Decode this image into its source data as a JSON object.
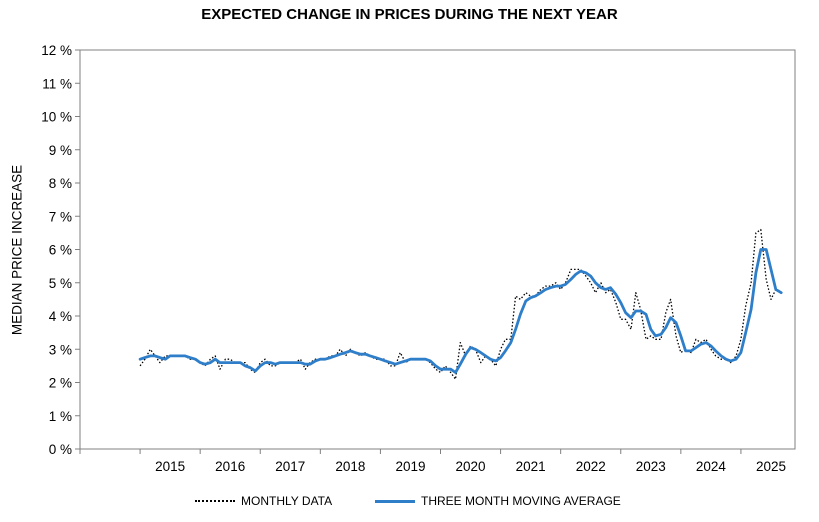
{
  "chart_data": {
    "type": "line",
    "title": "EXPECTED CHANGE IN PRICES DURING THE NEXT YEAR",
    "ylabel": "MEDIAN PRICE INCREASE",
    "xlabel": "",
    "ylim": [
      0,
      12
    ],
    "xlim": [
      2014.0,
      2025.9
    ],
    "y_ticks": [
      0,
      1,
      2,
      3,
      4,
      5,
      6,
      7,
      8,
      9,
      10,
      11,
      12
    ],
    "y_tick_labels": [
      "0 %",
      "1 %",
      "2 %",
      "3 %",
      "4 %",
      "5 %",
      "6 %",
      "7 %",
      "8 %",
      "9 %",
      "10 %",
      "11 %",
      "12 %"
    ],
    "x_ticks": [
      2015,
      2016,
      2017,
      2018,
      2019,
      2020,
      2021,
      2022,
      2023,
      2024,
      2025
    ],
    "x_tick_labels": [
      "2015",
      "2016",
      "2017",
      "2018",
      "2019",
      "2020",
      "2021",
      "2022",
      "2023",
      "2024",
      "2025"
    ],
    "grid": false,
    "legend_position": "bottom",
    "series": [
      {
        "name": "MONTHLY DATA",
        "style": "dotted",
        "color": "#000000",
        "points": [
          [
            2015.0,
            2.5
          ],
          [
            2015.08,
            2.7
          ],
          [
            2015.17,
            3.0
          ],
          [
            2015.25,
            2.8
          ],
          [
            2015.33,
            2.6
          ],
          [
            2015.42,
            2.8
          ],
          [
            2015.5,
            2.8
          ],
          [
            2015.58,
            2.8
          ],
          [
            2015.67,
            2.8
          ],
          [
            2015.75,
            2.8
          ],
          [
            2015.83,
            2.7
          ],
          [
            2015.92,
            2.7
          ],
          [
            2016.0,
            2.6
          ],
          [
            2016.08,
            2.5
          ],
          [
            2016.17,
            2.7
          ],
          [
            2016.25,
            2.8
          ],
          [
            2016.33,
            2.4
          ],
          [
            2016.42,
            2.7
          ],
          [
            2016.5,
            2.7
          ],
          [
            2016.58,
            2.6
          ],
          [
            2016.67,
            2.6
          ],
          [
            2016.75,
            2.6
          ],
          [
            2016.83,
            2.4
          ],
          [
            2016.92,
            2.3
          ],
          [
            2017.0,
            2.6
          ],
          [
            2017.08,
            2.7
          ],
          [
            2017.17,
            2.5
          ],
          [
            2017.25,
            2.5
          ],
          [
            2017.33,
            2.6
          ],
          [
            2017.42,
            2.6
          ],
          [
            2017.5,
            2.6
          ],
          [
            2017.58,
            2.6
          ],
          [
            2017.67,
            2.7
          ],
          [
            2017.75,
            2.4
          ],
          [
            2017.83,
            2.6
          ],
          [
            2017.92,
            2.7
          ],
          [
            2018.0,
            2.7
          ],
          [
            2018.08,
            2.7
          ],
          [
            2018.17,
            2.8
          ],
          [
            2018.25,
            2.8
          ],
          [
            2018.33,
            3.0
          ],
          [
            2018.42,
            2.8
          ],
          [
            2018.5,
            3.0
          ],
          [
            2018.58,
            2.9
          ],
          [
            2018.67,
            2.8
          ],
          [
            2018.75,
            2.9
          ],
          [
            2018.83,
            2.8
          ],
          [
            2018.92,
            2.7
          ],
          [
            2019.0,
            2.7
          ],
          [
            2019.08,
            2.7
          ],
          [
            2019.17,
            2.5
          ],
          [
            2019.25,
            2.5
          ],
          [
            2019.33,
            2.9
          ],
          [
            2019.42,
            2.6
          ],
          [
            2019.5,
            2.7
          ],
          [
            2019.58,
            2.7
          ],
          [
            2019.67,
            2.7
          ],
          [
            2019.75,
            2.7
          ],
          [
            2019.83,
            2.6
          ],
          [
            2019.92,
            2.4
          ],
          [
            2020.0,
            2.3
          ],
          [
            2020.08,
            2.5
          ],
          [
            2020.17,
            2.3
          ],
          [
            2020.25,
            2.1
          ],
          [
            2020.33,
            3.2
          ],
          [
            2020.42,
            2.8
          ],
          [
            2020.5,
            3.1
          ],
          [
            2020.58,
            3.0
          ],
          [
            2020.67,
            2.6
          ],
          [
            2020.75,
            2.8
          ],
          [
            2020.83,
            2.7
          ],
          [
            2020.92,
            2.5
          ],
          [
            2021.0,
            3.0
          ],
          [
            2021.08,
            3.3
          ],
          [
            2021.17,
            3.3
          ],
          [
            2021.25,
            4.6
          ],
          [
            2021.33,
            4.5
          ],
          [
            2021.42,
            4.7
          ],
          [
            2021.5,
            4.6
          ],
          [
            2021.58,
            4.6
          ],
          [
            2021.67,
            4.8
          ],
          [
            2021.75,
            4.9
          ],
          [
            2021.83,
            4.9
          ],
          [
            2021.92,
            5.0
          ],
          [
            2022.0,
            4.8
          ],
          [
            2022.08,
            5.0
          ],
          [
            2022.17,
            5.4
          ],
          [
            2022.25,
            5.4
          ],
          [
            2022.33,
            5.4
          ],
          [
            2022.42,
            5.2
          ],
          [
            2022.5,
            5.0
          ],
          [
            2022.58,
            4.7
          ],
          [
            2022.67,
            5.0
          ],
          [
            2022.75,
            4.7
          ],
          [
            2022.83,
            4.8
          ],
          [
            2022.92,
            4.4
          ],
          [
            2023.0,
            3.9
          ],
          [
            2023.08,
            3.9
          ],
          [
            2023.17,
            3.6
          ],
          [
            2023.25,
            4.7
          ],
          [
            2023.33,
            4.2
          ],
          [
            2023.42,
            3.3
          ],
          [
            2023.5,
            3.4
          ],
          [
            2023.58,
            3.3
          ],
          [
            2023.67,
            3.3
          ],
          [
            2023.75,
            4.1
          ],
          [
            2023.83,
            4.5
          ],
          [
            2023.92,
            3.4
          ],
          [
            2024.0,
            2.9
          ],
          [
            2024.08,
            3.0
          ],
          [
            2024.17,
            2.9
          ],
          [
            2024.25,
            3.3
          ],
          [
            2024.33,
            3.2
          ],
          [
            2024.42,
            3.3
          ],
          [
            2024.5,
            3.0
          ],
          [
            2024.58,
            2.8
          ],
          [
            2024.67,
            2.7
          ],
          [
            2024.75,
            2.7
          ],
          [
            2024.83,
            2.6
          ],
          [
            2024.92,
            2.8
          ],
          [
            2025.0,
            3.3
          ],
          [
            2025.08,
            4.3
          ],
          [
            2025.17,
            5.0
          ],
          [
            2025.25,
            6.5
          ],
          [
            2025.33,
            6.6
          ],
          [
            2025.42,
            5.1
          ],
          [
            2025.5,
            4.5
          ],
          [
            2025.58,
            4.8
          ],
          [
            2025.67,
            4.7
          ]
        ]
      },
      {
        "name": "THREE MONTH MOVING AVERAGE",
        "style": "solid",
        "color": "#2e7ec9",
        "points": [
          [
            2015.0,
            2.7
          ],
          [
            2015.08,
            2.75
          ],
          [
            2015.17,
            2.8
          ],
          [
            2015.25,
            2.8
          ],
          [
            2015.33,
            2.75
          ],
          [
            2015.42,
            2.7
          ],
          [
            2015.5,
            2.8
          ],
          [
            2015.58,
            2.8
          ],
          [
            2015.67,
            2.8
          ],
          [
            2015.75,
            2.8
          ],
          [
            2015.83,
            2.75
          ],
          [
            2015.92,
            2.7
          ],
          [
            2016.0,
            2.6
          ],
          [
            2016.08,
            2.55
          ],
          [
            2016.17,
            2.6
          ],
          [
            2016.25,
            2.7
          ],
          [
            2016.33,
            2.6
          ],
          [
            2016.42,
            2.6
          ],
          [
            2016.5,
            2.6
          ],
          [
            2016.58,
            2.6
          ],
          [
            2016.67,
            2.6
          ],
          [
            2016.75,
            2.5
          ],
          [
            2016.83,
            2.45
          ],
          [
            2016.92,
            2.35
          ],
          [
            2017.0,
            2.5
          ],
          [
            2017.08,
            2.6
          ],
          [
            2017.17,
            2.6
          ],
          [
            2017.25,
            2.55
          ],
          [
            2017.33,
            2.6
          ],
          [
            2017.42,
            2.6
          ],
          [
            2017.5,
            2.6
          ],
          [
            2017.58,
            2.6
          ],
          [
            2017.67,
            2.6
          ],
          [
            2017.75,
            2.55
          ],
          [
            2017.83,
            2.55
          ],
          [
            2017.92,
            2.65
          ],
          [
            2018.0,
            2.7
          ],
          [
            2018.08,
            2.7
          ],
          [
            2018.17,
            2.75
          ],
          [
            2018.25,
            2.8
          ],
          [
            2018.33,
            2.85
          ],
          [
            2018.42,
            2.9
          ],
          [
            2018.5,
            2.95
          ],
          [
            2018.58,
            2.9
          ],
          [
            2018.67,
            2.85
          ],
          [
            2018.75,
            2.85
          ],
          [
            2018.83,
            2.8
          ],
          [
            2018.92,
            2.75
          ],
          [
            2019.0,
            2.7
          ],
          [
            2019.08,
            2.65
          ],
          [
            2019.17,
            2.6
          ],
          [
            2019.25,
            2.55
          ],
          [
            2019.33,
            2.6
          ],
          [
            2019.42,
            2.65
          ],
          [
            2019.5,
            2.7
          ],
          [
            2019.58,
            2.7
          ],
          [
            2019.67,
            2.7
          ],
          [
            2019.75,
            2.7
          ],
          [
            2019.83,
            2.65
          ],
          [
            2019.92,
            2.5
          ],
          [
            2020.0,
            2.4
          ],
          [
            2020.08,
            2.4
          ],
          [
            2020.17,
            2.4
          ],
          [
            2020.25,
            2.3
          ],
          [
            2020.33,
            2.55
          ],
          [
            2020.42,
            2.85
          ],
          [
            2020.5,
            3.05
          ],
          [
            2020.58,
            3.0
          ],
          [
            2020.67,
            2.9
          ],
          [
            2020.75,
            2.8
          ],
          [
            2020.83,
            2.7
          ],
          [
            2020.92,
            2.65
          ],
          [
            2021.0,
            2.75
          ],
          [
            2021.08,
            2.95
          ],
          [
            2021.17,
            3.2
          ],
          [
            2021.25,
            3.6
          ],
          [
            2021.33,
            4.05
          ],
          [
            2021.42,
            4.45
          ],
          [
            2021.5,
            4.55
          ],
          [
            2021.58,
            4.6
          ],
          [
            2021.67,
            4.7
          ],
          [
            2021.75,
            4.8
          ],
          [
            2021.83,
            4.85
          ],
          [
            2021.92,
            4.9
          ],
          [
            2022.0,
            4.9
          ],
          [
            2022.08,
            4.95
          ],
          [
            2022.17,
            5.1
          ],
          [
            2022.25,
            5.25
          ],
          [
            2022.33,
            5.35
          ],
          [
            2022.42,
            5.3
          ],
          [
            2022.5,
            5.2
          ],
          [
            2022.58,
            5.0
          ],
          [
            2022.67,
            4.85
          ],
          [
            2022.75,
            4.8
          ],
          [
            2022.83,
            4.85
          ],
          [
            2022.92,
            4.65
          ],
          [
            2023.0,
            4.4
          ],
          [
            2023.08,
            4.1
          ],
          [
            2023.17,
            3.95
          ],
          [
            2023.25,
            4.15
          ],
          [
            2023.33,
            4.15
          ],
          [
            2023.42,
            4.05
          ],
          [
            2023.5,
            3.6
          ],
          [
            2023.58,
            3.4
          ],
          [
            2023.67,
            3.45
          ],
          [
            2023.75,
            3.65
          ],
          [
            2023.83,
            3.95
          ],
          [
            2023.92,
            3.8
          ],
          [
            2024.0,
            3.4
          ],
          [
            2024.08,
            2.95
          ],
          [
            2024.17,
            2.95
          ],
          [
            2024.25,
            3.05
          ],
          [
            2024.33,
            3.15
          ],
          [
            2024.42,
            3.2
          ],
          [
            2024.5,
            3.1
          ],
          [
            2024.58,
            2.95
          ],
          [
            2024.67,
            2.8
          ],
          [
            2024.75,
            2.7
          ],
          [
            2024.83,
            2.65
          ],
          [
            2024.92,
            2.7
          ],
          [
            2025.0,
            2.9
          ],
          [
            2025.08,
            3.5
          ],
          [
            2025.17,
            4.2
          ],
          [
            2025.25,
            5.3
          ],
          [
            2025.33,
            6.0
          ],
          [
            2025.42,
            6.0
          ],
          [
            2025.5,
            5.4
          ],
          [
            2025.58,
            4.8
          ],
          [
            2025.67,
            4.7
          ]
        ]
      }
    ]
  }
}
